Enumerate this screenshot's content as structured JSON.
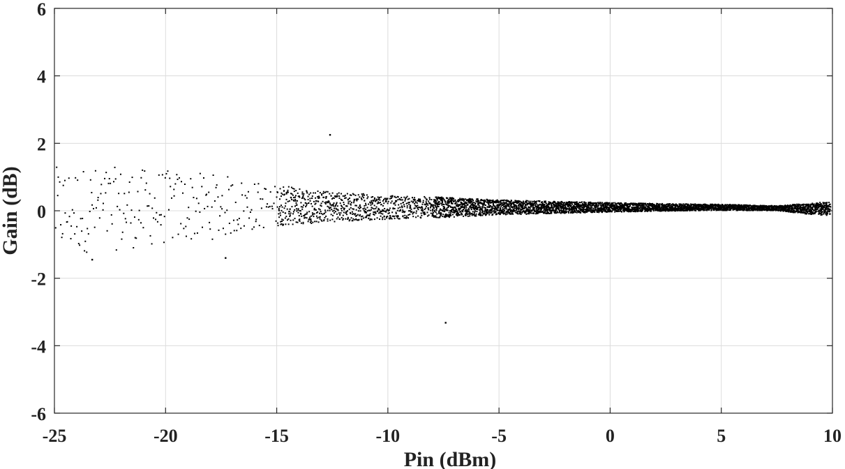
{
  "chart_data": {
    "type": "scatter",
    "xlabel": "Pin (dBm)",
    "ylabel": "Gain (dB)",
    "xlim": [
      -25,
      10
    ],
    "ylim": [
      -6,
      6
    ],
    "xticks": [
      -25,
      -20,
      -15,
      -10,
      -5,
      0,
      5,
      10
    ],
    "yticks": [
      -6,
      -4,
      -2,
      0,
      2,
      4,
      6
    ],
    "xtick_labels": [
      "-25",
      "-20",
      "-15",
      "-10",
      "-5",
      "0",
      "5",
      "10"
    ],
    "ytick_labels": [
      "-6",
      "-4",
      "-2",
      "0",
      "2",
      "4",
      "6"
    ],
    "grid": true,
    "legend": "none",
    "marker_color": "#000000",
    "outliers": [
      {
        "x": -12.6,
        "y": 2.25
      },
      {
        "x": -7.4,
        "y": -3.32
      },
      {
        "x": -17.3,
        "y": -1.4
      },
      {
        "x": -23.3,
        "y": -1.45
      }
    ],
    "spread_profile": [
      {
        "x": -25.0,
        "y_spread": 1.3
      },
      {
        "x": -22.5,
        "y_spread": 1.25
      },
      {
        "x": -20.0,
        "y_spread": 1.1
      },
      {
        "x": -17.5,
        "y_spread": 0.95
      },
      {
        "x": -15.0,
        "y_spread": 0.6
      },
      {
        "x": -12.5,
        "y_spread": 0.45
      },
      {
        "x": -10.0,
        "y_spread": 0.35
      },
      {
        "x": -7.5,
        "y_spread": 0.3
      },
      {
        "x": -5.0,
        "y_spread": 0.22
      },
      {
        "x": -2.5,
        "y_spread": 0.18
      },
      {
        "x": 0.0,
        "y_spread": 0.14
      },
      {
        "x": 2.5,
        "y_spread": 0.11
      },
      {
        "x": 5.0,
        "y_spread": 0.09
      },
      {
        "x": 7.5,
        "y_spread": 0.07
      },
      {
        "x": 9.5,
        "y_spread": 0.2
      }
    ],
    "y_center_profile": [
      {
        "x": -25.0,
        "y": 0.0
      },
      {
        "x": -20.0,
        "y": 0.1
      },
      {
        "x": -15.0,
        "y": 0.15
      },
      {
        "x": -10.0,
        "y": 0.1
      },
      {
        "x": -5.0,
        "y": 0.1
      },
      {
        "x": 0.0,
        "y": 0.1
      },
      {
        "x": 5.0,
        "y": 0.1
      },
      {
        "x": 10.0,
        "y": 0.05
      }
    ]
  }
}
